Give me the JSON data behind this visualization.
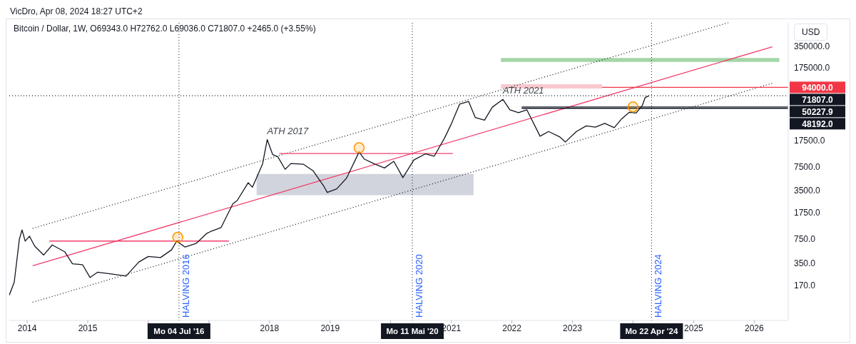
{
  "chart_data": {
    "type": "line",
    "subtitle": "VicDro, Apr 08, 2024 18:27 UTC+2",
    "title": "Bitcoin / Dollar, 1W, O69343.0 H72762.0 L69036.0 C71807.0 +2465.0 (+3.55%)",
    "ylabel": "USD",
    "log": "y",
    "xlim": [
      "2013-09-15",
      "2026-07-25"
    ],
    "xticks": [
      "2014",
      "2015",
      {
        "value": "2016",
        "label": null
      },
      {
        "value": "2017",
        "label": null
      },
      "2018",
      "2019",
      {
        "value": "2020",
        "label": null
      },
      "2021",
      "2022",
      "2023",
      {
        "value": "2024",
        "label": null
      },
      "2025",
      "2026"
    ],
    "ylim": [
      56,
      750000
    ],
    "yticks": [
      {
        "value": 170,
        "label": "170.0"
      },
      {
        "value": 350,
        "label": "350.0"
      },
      {
        "value": 750,
        "label": "750.0"
      },
      {
        "value": 1750,
        "label": "1750.0"
      },
      {
        "value": 3500,
        "label": "3500.0"
      },
      {
        "value": 7500,
        "label": "7500.0"
      },
      {
        "value": 17500,
        "label": "17500.0"
      },
      {
        "value": 175000,
        "label": "175000.0"
      },
      {
        "value": 350000,
        "label": "350000.0"
      }
    ],
    "series": [
      {
        "type": "area",
        "color": "#d1d4dc",
        "x": [
          "2017-10-15",
          "2021-05-15"
        ],
        "values": [
          null,
          null
        ],
        "lower": [
          3030,
          3030
        ],
        "upper": [
          5960,
          5960
        ]
      },
      {
        "type": "area",
        "color": "#a5d6a7",
        "x": [
          "2021-10-27",
          "2026-06-01"
        ],
        "values": [
          null,
          null
        ],
        "lower": [
          211000,
          211000
        ],
        "upper": [
          239000,
          239000
        ]
      },
      {
        "type": "area",
        "color": "#f8c8cd",
        "x": [
          "2021-10-27",
          "2023-06-28"
        ],
        "values": [
          null,
          null
        ],
        "lower": [
          90800,
          90800
        ],
        "upper": [
          104000,
          104000
        ]
      },
      {
        "type": "line",
        "color": "#131722",
        "line_style": "dotted",
        "x": [
          "2014-02-03",
          "2025-07-28"
        ],
        "values": [
          1050,
          736000
        ]
      },
      {
        "type": "line",
        "color": "#131722",
        "line_style": "dotted",
        "x": [
          "2014-02-03",
          "2026-04-20"
        ],
        "values": [
          100,
          107000
        ]
      },
      {
        "type": "line",
        "color": "#f23e6c",
        "line_style": "solid",
        "x": [
          "2014-02-03",
          "2026-04-20"
        ],
        "values": [
          319,
          342000
        ]
      },
      {
        "type": "line",
        "color": "#f23e6c",
        "line_style": "solid",
        "x": [
          "2014-05-15",
          "2017-05-01"
        ],
        "values": [
          702,
          702
        ]
      },
      {
        "type": "line",
        "color": "#f23e6c",
        "line_style": "solid",
        "x": [
          "2018-03-01",
          "2021-01-10"
        ],
        "values": [
          11400,
          11400
        ]
      },
      {
        "type": "line",
        "color": "#f23645",
        "line_style": "solid",
        "x": [
          "2023-06-28",
          "2026-07-25"
        ],
        "values": [
          94000,
          94000
        ],
        "value_labels": [
          null,
          "94000.0"
        ]
      },
      {
        "type": "line",
        "color": "#131722",
        "line_style": "dotted",
        "x": [
          "2013-09-15",
          "2026-07-25"
        ],
        "values": [
          71807,
          71807
        ],
        "value_labels": [
          null,
          "71807.0"
        ]
      },
      {
        "type": "line",
        "color": "#131722",
        "line_style": "solid",
        "x": [
          "2022-03-01",
          "2026-07-25"
        ],
        "values": [
          50227.9,
          50227.9
        ],
        "value_labels": [
          null,
          "50227.9"
        ]
      },
      {
        "type": "line",
        "color": "#131722",
        "line_style": "solid",
        "x": [
          "2022-03-01",
          "2026-07-25"
        ],
        "values": [
          48192,
          48192
        ],
        "value_labels": [
          null,
          "48192.0"
        ]
      },
      {
        "color": "#131722",
        "line_style": "solid",
        "x": [
          "2013-09-15",
          "2013-10-15",
          "2013-11-15",
          "2013-12-01",
          "2013-12-20",
          "2014-01-15",
          "2014-02-15",
          "2014-04-10",
          "2014-06-01",
          "2014-08-15",
          "2014-10-01",
          "2014-12-01",
          "2015-01-15",
          "2015-03-01",
          "2015-06-01",
          "2015-08-20",
          "2015-11-05",
          "2016-01-01",
          "2016-03-15",
          "2016-05-20",
          "2016-06-20",
          "2016-08-10",
          "2016-10-15",
          "2016-12-20",
          "2017-01-10",
          "2017-03-15",
          "2017-05-25",
          "2017-06-20",
          "2017-08-25",
          "2017-09-20",
          "2017-11-20",
          "2017-12-18",
          "2018-01-20",
          "2018-02-20",
          "2018-04-05",
          "2018-05-10",
          "2018-07-25",
          "2018-09-20",
          "2018-11-25",
          "2018-12-15",
          "2019-02-10",
          "2019-04-10",
          "2019-06-25",
          "2019-07-25",
          "2019-09-25",
          "2019-11-25",
          "2020-01-20",
          "2020-03-15",
          "2020-05-20",
          "2020-07-30",
          "2020-09-20",
          "2020-11-20",
          "2020-12-28",
          "2021-02-20",
          "2021-04-15",
          "2021-05-25",
          "2021-07-20",
          "2021-09-05",
          "2021-11-08",
          "2021-12-20",
          "2022-02-10",
          "2022-04-01",
          "2022-06-20",
          "2022-08-10",
          "2022-10-15",
          "2022-11-20",
          "2023-01-25",
          "2023-03-25",
          "2023-05-20",
          "2023-07-15",
          "2023-09-10",
          "2023-10-25",
          "2023-12-10",
          "2024-01-20",
          "2024-02-25",
          "2024-03-15",
          "2024-04-08"
        ],
        "values": [
          125,
          190,
          750,
          1000,
          700,
          820,
          600,
          450,
          620,
          500,
          340,
          330,
          220,
          260,
          245,
          230,
          360,
          430,
          415,
          530,
          700,
          580,
          650,
          900,
          950,
          1080,
          2300,
          2550,
          4500,
          3900,
          8200,
          17800,
          11000,
          10300,
          6900,
          8300,
          8100,
          6600,
          4000,
          3300,
          3700,
          5200,
          12000,
          9600,
          8200,
          7200,
          8900,
          5300,
          9300,
          11300,
          10500,
          18500,
          28000,
          55000,
          60000,
          36000,
          33000,
          50000,
          64000,
          46000,
          42000,
          46000,
          19800,
          23000,
          19500,
          16500,
          23000,
          27500,
          26500,
          29800,
          26000,
          34500,
          42500,
          41500,
          52000,
          68000,
          71807
        ]
      },
      {
        "type": "scatter",
        "color": "#ff9800",
        "marker": "circle",
        "x": [
          "2016-06-27",
          "2019-06-25",
          "2024-01-01"
        ],
        "values": [
          790,
          13700,
          50500
        ]
      }
    ],
    "ref_lines": [
      {
        "axis": "x",
        "value": "2016-07-04",
        "label": "Mo 04 Jul '16",
        "color": "#131722",
        "line_style": "dotted"
      },
      {
        "axis": "x",
        "value": "2020-05-11",
        "label": "Mo 11 Mai '20",
        "color": "#131722",
        "line_style": "dotted"
      },
      {
        "axis": "x",
        "value": "2024-04-22",
        "label": "Mo 22 Apr '24",
        "color": "#131722",
        "line_style": "dotted"
      }
    ],
    "annotations": [
      {
        "text": "ATH 2017",
        "x": "2017-12-18",
        "y": 17800
      },
      {
        "text": "ATH 2021",
        "x": "2021-11-08",
        "y": 64000
      },
      {
        "text": "HALVING 2016",
        "x": "2016-07-04"
      },
      {
        "text": "HALVING 2020",
        "x": "2020-05-11"
      },
      {
        "text": "HALVING 2024",
        "x": "2024-04-22"
      }
    ]
  }
}
